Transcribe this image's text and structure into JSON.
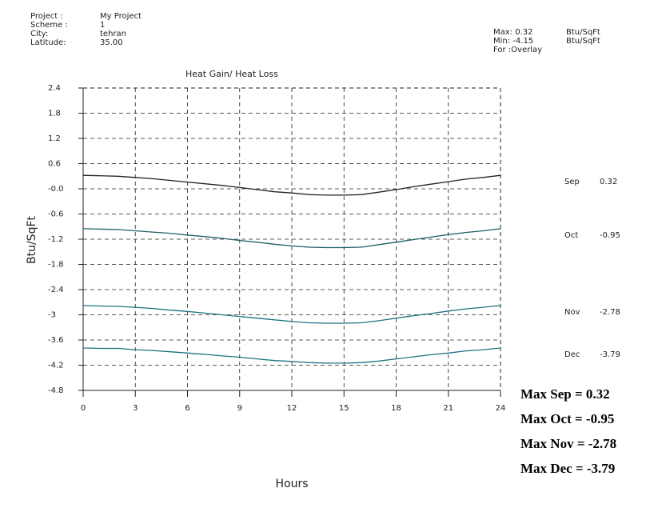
{
  "chart_data": {
    "type": "line",
    "title": "Heat Gain/ Heat Loss",
    "x_label": "Hours",
    "y_label": "Btu/SqFt",
    "info": [
      {
        "label": "Project :",
        "value": "My Project"
      },
      {
        "label": "Scheme  :",
        "value": "1"
      },
      {
        "label": "City:",
        "value": "tehran"
      },
      {
        "label": "Latitude:",
        "value": "35.00"
      }
    ],
    "stats": [
      {
        "label": "Max: 0.32",
        "unit": "Btu/SqFt"
      },
      {
        "label": "Min: -4.15",
        "unit": "Btu/SqFt"
      },
      {
        "label": "For :Overlay"
      }
    ],
    "x": [
      0,
      1,
      2,
      3,
      4,
      5,
      6,
      7,
      8,
      9,
      10,
      11,
      12,
      13,
      14,
      15,
      16,
      17,
      18,
      19,
      20,
      21,
      22,
      23,
      24
    ],
    "series": [
      {
        "name": "Sep",
        "color": "#222222",
        "max_label": "0.32",
        "values": [
          0.32,
          0.31,
          0.3,
          0.27,
          0.24,
          0.2,
          0.16,
          0.12,
          0.08,
          0.03,
          -0.02,
          -0.07,
          -0.1,
          -0.14,
          -0.15,
          -0.15,
          -0.14,
          -0.08,
          -0.02,
          0.05,
          0.11,
          0.17,
          0.23,
          0.27,
          0.32
        ]
      },
      {
        "name": "Oct",
        "color": "#1f5f66",
        "max_label": "-0.95",
        "values": [
          -0.95,
          -0.96,
          -0.97,
          -1.0,
          -1.03,
          -1.06,
          -1.1,
          -1.14,
          -1.18,
          -1.23,
          -1.27,
          -1.32,
          -1.36,
          -1.39,
          -1.4,
          -1.4,
          -1.39,
          -1.33,
          -1.27,
          -1.21,
          -1.15,
          -1.09,
          -1.04,
          -1.0,
          -0.95
        ]
      },
      {
        "name": "Nov",
        "color": "#1c7282",
        "max_label": "-2.78",
        "values": [
          -2.78,
          -2.79,
          -2.8,
          -2.82,
          -2.85,
          -2.89,
          -2.92,
          -2.96,
          -3.0,
          -3.04,
          -3.08,
          -3.12,
          -3.16,
          -3.19,
          -3.2,
          -3.2,
          -3.19,
          -3.14,
          -3.08,
          -3.02,
          -2.97,
          -2.91,
          -2.86,
          -2.82,
          -2.78
        ]
      },
      {
        "name": "Dec",
        "color": "#1c7282",
        "max_label": "-3.79",
        "values": [
          -3.79,
          -3.8,
          -3.8,
          -3.83,
          -3.85,
          -3.88,
          -3.91,
          -3.94,
          -3.98,
          -4.01,
          -4.05,
          -4.09,
          -4.11,
          -4.14,
          -4.15,
          -4.15,
          -4.14,
          -4.1,
          -4.05,
          -4.0,
          -3.95,
          -3.91,
          -3.86,
          -3.83,
          -3.79
        ]
      }
    ],
    "xlim": [
      0,
      24
    ],
    "xticks": [
      0,
      3,
      6,
      9,
      12,
      15,
      18,
      21,
      24
    ],
    "ylim": [
      -4.8,
      2.4
    ],
    "yticks": [
      2.4,
      1.8,
      1.2,
      0.6,
      {
        "value": 0,
        "label": "-0.0"
      },
      -0.6,
      -1.2,
      -1.8,
      -2.4,
      -3.0,
      -3.6,
      -4.2,
      -4.8
    ],
    "grid": true,
    "annotations": [
      "Max Sep = 0.32",
      "Max Oct = -0.95",
      "Max Nov = -2.78",
      "Max Dec = -3.79"
    ]
  }
}
